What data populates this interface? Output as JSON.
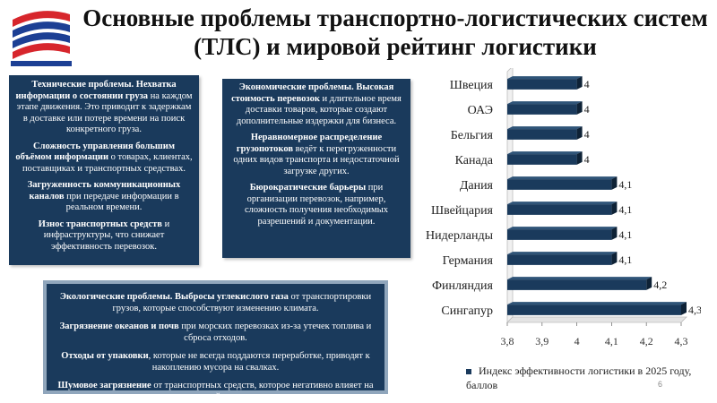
{
  "title": "Основные проблемы транспортно-логистических систем (ТЛС) и мировой рейтинг логистики",
  "box1": {
    "p1_bold": "Технические проблемы. Нехватка информации о состоянии груза",
    "p1_rest": " на каждом этапе движения. Это приводит к задержкам в доставке или потере времени на поиск конкретного груза.",
    "p2_bold": "Сложность управления большим объёмом информации",
    "p2_rest": " о товарах, клиентах, поставщиках и транспортных средствах.",
    "p3_bold": "Загруженность коммуникационных каналов",
    "p3_rest": " при передаче информации в реальном времени.",
    "p4_bold": "Износ транспортных средств",
    "p4_rest": " и инфраструктуры, что снижает эффективность перевозок."
  },
  "box2": {
    "p1_bold": "Экономические проблемы. Высокая стоимость перевозок",
    "p1_rest": " и длительное время доставки товаров, которые создают дополнительные издержки для бизнеса.",
    "p2_bold": "Неравномерное распределение грузопотоков",
    "p2_rest": " ведёт к перегруженности одних видов транспорта и недостаточной загрузке других.",
    "p3_bold": "Бюрократические барьеры",
    "p3_rest": " при организации перевозок, например, сложность получения необходимых разрешений и документации."
  },
  "box3": {
    "p1_bold": "Экологические проблемы. Выбросы углекислого газа",
    "p1_rest": " от транспортировки грузов, которые способствуют изменению климата.",
    "p2_bold": "Загрязнение океанов и почв",
    "p2_rest": " при морских перевозках из-за утечек топлива и сброса отходов.",
    "p3_bold": "Отходы от упаковки",
    "p3_rest": ", которые не всегда поддаются переработке, приводят к накоплению мусора на свалках.",
    "p4_bold": "Шумовое загрязнение",
    "p4_rest": " от транспортных средств, которое негативно влияет на здоровье людей и животных."
  },
  "chart_data": {
    "type": "bar",
    "orientation": "horizontal",
    "categories": [
      "Швеция",
      "ОАЭ",
      "Бельгия",
      "Канада",
      "Дания",
      "Швейцария",
      "Нидерланды",
      "Германия",
      "Финляндия",
      "Сингапур"
    ],
    "values": [
      4,
      4,
      4,
      4,
      4.1,
      4.1,
      4.1,
      4.1,
      4.2,
      4.3
    ],
    "value_labels": [
      "4",
      "4",
      "4",
      "4",
      "4,1",
      "4,1",
      "4,1",
      "4,1",
      "4,2",
      "4,3"
    ],
    "xlim": [
      3.8,
      4.3
    ],
    "xticks": [
      "3,8",
      "3,9",
      "4",
      "4,1",
      "4,2",
      "4,3"
    ],
    "series": [
      {
        "name": "Индекс эффективности логистики в 2025 году, баллов",
        "color": "#1a3a5c"
      }
    ],
    "legend_position": "bottom",
    "grid": false
  },
  "page_number": "6",
  "colors": {
    "box_bg": "#1a3a5c",
    "bar": "#1a3a5c",
    "logo_red": "#d7262c",
    "logo_blue": "#1c3f94"
  }
}
